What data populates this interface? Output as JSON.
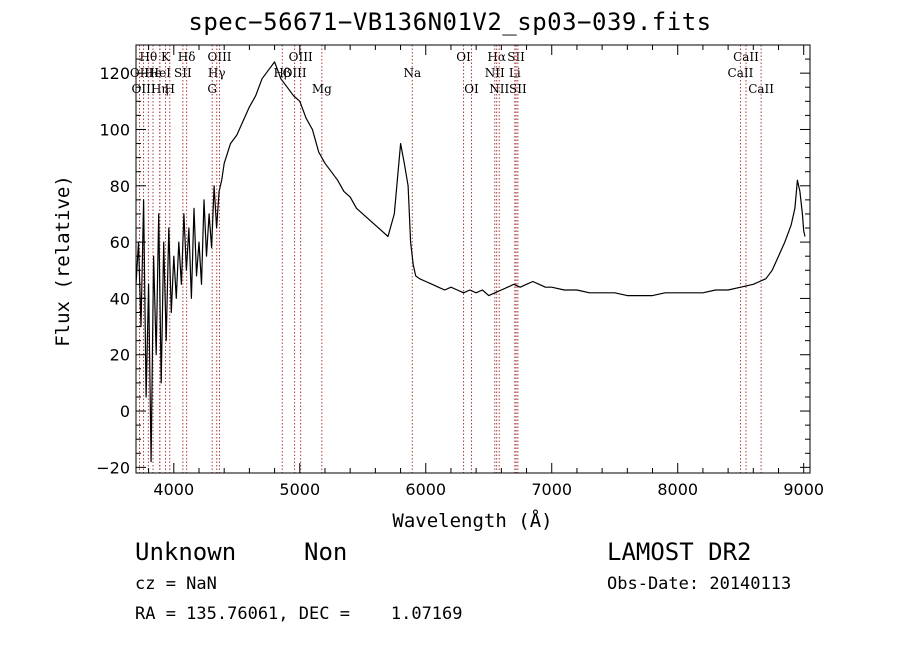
{
  "chart_data": {
    "type": "line",
    "title": "spec−56671−VB136N01V2_sp03−039.fits",
    "xlabel": "Wavelength (Å)",
    "ylabel": "Flux (relative)",
    "xlim": [
      3700,
      9050
    ],
    "ylim": [
      -22,
      130
    ],
    "x_ticks": [
      4000,
      5000,
      6000,
      7000,
      8000,
      9000
    ],
    "y_ticks": [
      -20,
      0,
      20,
      40,
      60,
      80,
      100,
      120
    ],
    "y_tick_labels": [
      "−20",
      "0",
      "20",
      "40",
      "60",
      "80",
      "100",
      "120"
    ],
    "grid": false,
    "series": [
      {
        "x": [
          3700,
          3720,
          3740,
          3760,
          3780,
          3800,
          3820,
          3840,
          3860,
          3880,
          3900,
          3920,
          3940,
          3960,
          3980,
          4000,
          4020,
          4040,
          4060,
          4080,
          4100,
          4120,
          4140,
          4160,
          4180,
          4200,
          4220,
          4240,
          4260,
          4280,
          4300,
          4320,
          4340,
          4360,
          4380,
          4400,
          4450,
          4500,
          4550,
          4600,
          4650,
          4700,
          4750,
          4800,
          4850,
          4900,
          4950,
          5000,
          5050,
          5100,
          5150,
          5200,
          5250,
          5300,
          5350,
          5400,
          5450,
          5500,
          5550,
          5600,
          5650,
          5700,
          5750,
          5800,
          5830,
          5860,
          5880,
          5900,
          5920,
          5950,
          6000,
          6050,
          6100,
          6150,
          6200,
          6250,
          6300,
          6350,
          6400,
          6450,
          6500,
          6550,
          6600,
          6650,
          6700,
          6750,
          6800,
          6850,
          6900,
          6950,
          7000,
          7100,
          7200,
          7300,
          7400,
          7500,
          7600,
          7700,
          7800,
          7900,
          8000,
          8100,
          8200,
          8300,
          8400,
          8500,
          8600,
          8700,
          8750,
          8800,
          8850,
          8900,
          8930,
          8950,
          8970,
          8990,
          9000,
          9010
        ],
        "values": [
          45,
          60,
          30,
          75,
          5,
          45,
          -18,
          55,
          20,
          70,
          10,
          60,
          25,
          65,
          35,
          55,
          40,
          60,
          45,
          70,
          50,
          65,
          40,
          72,
          48,
          60,
          45,
          75,
          55,
          70,
          58,
          80,
          65,
          78,
          82,
          88,
          95,
          98,
          103,
          108,
          112,
          118,
          121,
          124,
          118,
          115,
          112,
          110,
          104,
          100,
          92,
          88,
          85,
          82,
          78,
          76,
          72,
          70,
          68,
          66,
          64,
          62,
          70,
          95,
          88,
          80,
          60,
          52,
          48,
          47,
          46,
          45,
          44,
          43,
          44,
          43,
          42,
          43,
          42,
          43,
          41,
          42,
          43,
          44,
          45,
          44,
          45,
          46,
          45,
          44,
          44,
          43,
          43,
          42,
          42,
          42,
          41,
          41,
          41,
          42,
          42,
          42,
          42,
          43,
          43,
          44,
          45,
          47,
          50,
          55,
          60,
          66,
          72,
          82,
          78,
          70,
          64,
          62
        ]
      }
    ],
    "line_colors": "#000000",
    "marker_color": "#b03a3a",
    "lines": [
      {
        "label": "Hθ",
        "x": 3798,
        "row": 0
      },
      {
        "label": "OII",
        "x": 3728,
        "row": 1
      },
      {
        "label": "OIII",
        "x": 3760,
        "row": 2
      },
      {
        "label": "He",
        "x": 3835,
        "row": 1
      },
      {
        "label": "Hη",
        "x": 3889,
        "row": 2
      },
      {
        "label": "K",
        "x": 3934,
        "row": 0
      },
      {
        "label": "HeI",
        "x": 3889,
        "row": 1
      },
      {
        "label": "H",
        "x": 3968,
        "row": 2
      },
      {
        "label": "SII",
        "x": 4072,
        "row": 1
      },
      {
        "label": "Hδ",
        "x": 4102,
        "row": 0
      },
      {
        "label": "OIII",
        "x": 4363,
        "row": 0
      },
      {
        "label": "Hγ",
        "x": 4341,
        "row": 1
      },
      {
        "label": "G",
        "x": 4305,
        "row": 2
      },
      {
        "label": "OIII",
        "x": 5007,
        "row": 0
      },
      {
        "label": "OIII",
        "x": 4959,
        "row": 1
      },
      {
        "label": "Hβ",
        "x": 4861,
        "row": 1
      },
      {
        "label": "Mg",
        "x": 5175,
        "row": 2
      },
      {
        "label": "Na",
        "x": 5893,
        "row": 1
      },
      {
        "label": "OI",
        "x": 6300,
        "row": 0
      },
      {
        "label": "OI",
        "x": 6363,
        "row": 2
      },
      {
        "label": "Hα",
        "x": 6563,
        "row": 0
      },
      {
        "label": "NII",
        "x": 6548,
        "row": 1
      },
      {
        "label": "NII",
        "x": 6583,
        "row": 2
      },
      {
        "label": "SII",
        "x": 6717,
        "row": 0
      },
      {
        "label": "Li",
        "x": 6707,
        "row": 1
      },
      {
        "label": "SII",
        "x": 6731,
        "row": 2
      },
      {
        "label": "CaII",
        "x": 8542,
        "row": 0
      },
      {
        "label": "CaII",
        "x": 8498,
        "row": 1
      },
      {
        "label": "CaII",
        "x": 8662,
        "row": 2
      }
    ]
  },
  "info": {
    "class": "Unknown",
    "subclass": "Non",
    "survey": "LAMOST DR2",
    "cz": "cz = NaN",
    "obs_date": "Obs-Date: 20140113",
    "coords": "RA = 135.76061, DEC =    1.07169"
  }
}
